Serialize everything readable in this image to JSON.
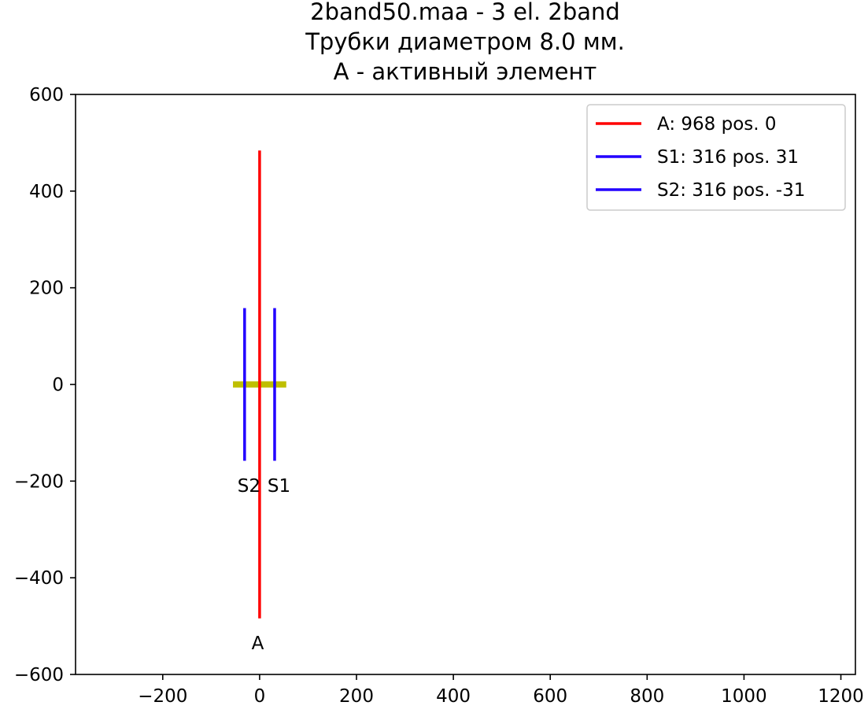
{
  "chart_data": {
    "type": "line",
    "title_lines": [
      "2band50.maa - 3 el. 2band",
      "Трубки диаметром 8.0 мм.",
      "A - активный элемент"
    ],
    "xlabel": "",
    "ylabel": "",
    "xlim": [
      -380,
      1230
    ],
    "ylim": [
      -600,
      600
    ],
    "xticks": [
      -200,
      0,
      200,
      400,
      600,
      800,
      1000,
      1200
    ],
    "yticks": [
      -600,
      -400,
      -200,
      0,
      200,
      400,
      600
    ],
    "grid": false,
    "legend_position": "top-right",
    "boom": {
      "x": [
        -55,
        55
      ],
      "y": [
        0,
        0
      ],
      "color": "#bfbf00"
    },
    "series": [
      {
        "name": "A: 968 pos. 0",
        "label": "A",
        "color": "#ff0000",
        "x": [
          0,
          0
        ],
        "y": [
          -484,
          484
        ]
      },
      {
        "name": "S1: 316 pos. 31",
        "label": "S1",
        "color": "#2200ff",
        "x": [
          31,
          31
        ],
        "y": [
          -158,
          158
        ]
      },
      {
        "name": "S2: 316 pos. -31",
        "label": "S2",
        "color": "#2200ff",
        "x": [
          -31,
          -31
        ],
        "y": [
          -158,
          158
        ]
      }
    ],
    "element_labels": [
      {
        "text": "S2",
        "x": -22,
        "y": -222
      },
      {
        "text": "S1",
        "x": 40,
        "y": -222
      },
      {
        "text": "A",
        "x": -4,
        "y": -548
      }
    ]
  }
}
